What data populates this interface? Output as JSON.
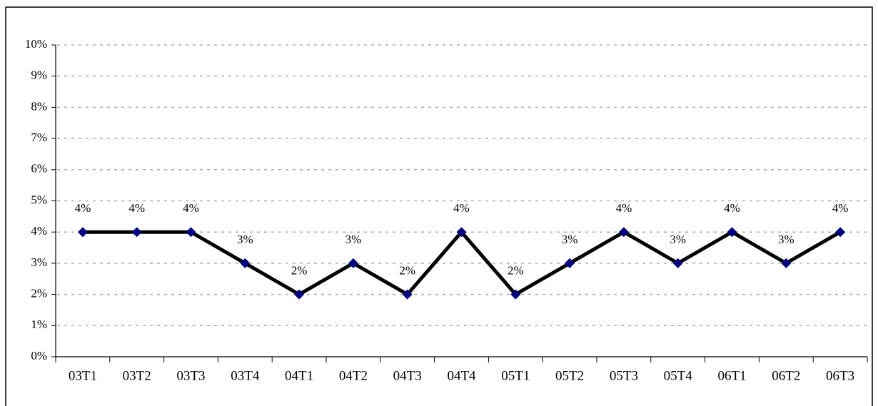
{
  "chart_data": {
    "type": "line",
    "categories": [
      "03T1",
      "03T2",
      "03T3",
      "03T4",
      "04T1",
      "04T2",
      "04T3",
      "04T4",
      "05T1",
      "05T2",
      "05T3",
      "05T4",
      "06T1",
      "06T2",
      "06T3"
    ],
    "values": [
      4,
      4,
      4,
      3,
      2,
      3,
      2,
      4,
      2,
      3,
      4,
      3,
      4,
      3,
      4
    ],
    "value_labels": [
      "4%",
      "4%",
      "4%",
      "3%",
      "2%",
      "3%",
      "2%",
      "4%",
      "2%",
      "3%",
      "4%",
      "3%",
      "4%",
      "3%",
      "4%"
    ],
    "color": "#000000",
    "marker_color": "#000080",
    "ylim": [
      0,
      10
    ],
    "yticks": [
      {
        "value": 0,
        "label": "0%"
      },
      {
        "value": 1,
        "label": "1%"
      },
      {
        "value": 2,
        "label": "2%"
      },
      {
        "value": 3,
        "label": "3%"
      },
      {
        "value": 4,
        "label": "4%"
      },
      {
        "value": 5,
        "label": "5%"
      },
      {
        "value": 6,
        "label": "6%"
      },
      {
        "value": 7,
        "label": "7%"
      },
      {
        "value": 8,
        "label": "8%"
      },
      {
        "value": 9,
        "label": "9%"
      },
      {
        "value": 10,
        "label": "10%"
      }
    ],
    "grid": true
  }
}
